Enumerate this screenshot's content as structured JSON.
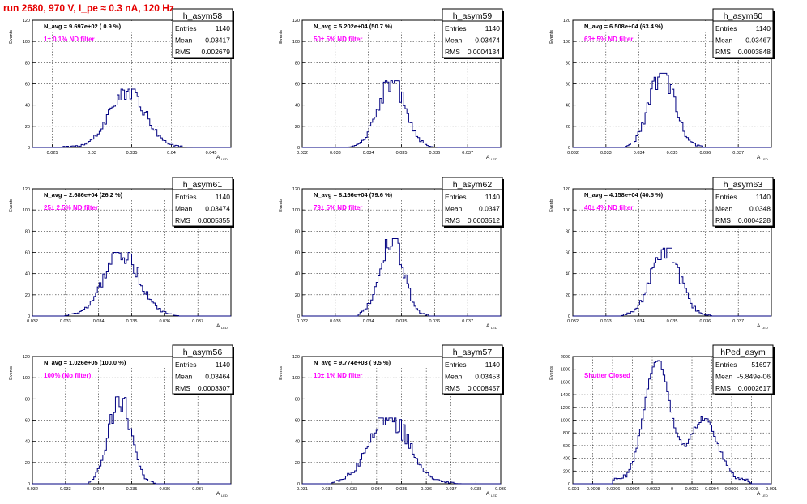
{
  "title": "run 2680,   970 V, I_pe ≈ 0.3 nA, 120 Hz",
  "colors": {
    "title": "#e60000",
    "annotation": "#ff00ff",
    "histogram": "#000080",
    "grid": "#000000"
  },
  "y_axis_label": "Events",
  "x_axis_label": "A",
  "x_axis_label_sub": "LED",
  "stats_labels": {
    "entries": "Entries",
    "mean": "Mean",
    "rms": "RMS"
  },
  "chart_data": [
    {
      "type": "histogram",
      "name": "h_asym58",
      "entries": "1140",
      "mean": "0.03417",
      "rms": "0.002679",
      "navg_text": "N_avg = 9.697e+02 ( 0.9 %)",
      "annotation": "1± 0.1% ND filter",
      "xlim": [
        0.0225,
        0.0475
      ],
      "ylim": [
        0,
        120
      ],
      "xticks": [
        0.025,
        0.03,
        0.035,
        0.04,
        0.045
      ],
      "xtick_labels": [
        "0.025",
        "0.03",
        "0.035",
        "0.04",
        "0.045"
      ],
      "yticks": [
        0,
        20,
        40,
        60,
        80,
        100,
        120
      ],
      "ytick_labels": [
        "0",
        "20",
        "40",
        "60",
        "80",
        "100",
        "120"
      ],
      "peak_x": 0.0345,
      "peak_y": 55,
      "sigma": 0.0022,
      "span": [
        0.026,
        0.043
      ]
    },
    {
      "type": "histogram",
      "name": "h_asym59",
      "entries": "1140",
      "mean": "0.03474",
      "rms": "0.0004134",
      "navg_text": "N_avg = 5.202e+04 (50.7 %)",
      "annotation": "50± 5% ND filter",
      "xlim": [
        0.032,
        0.038
      ],
      "ylim": [
        0,
        120
      ],
      "xticks": [
        0.032,
        0.033,
        0.034,
        0.035,
        0.036,
        0.037
      ],
      "xtick_labels": [
        "0.032",
        "0.033",
        "0.034",
        "0.035",
        "0.036",
        "0.037"
      ],
      "yticks": [
        0,
        20,
        40,
        60,
        80,
        100,
        120
      ],
      "ytick_labels": [
        "0",
        "20",
        "40",
        "60",
        "80",
        "100",
        "120"
      ],
      "peak_x": 0.0347,
      "peak_y": 63,
      "sigma": 0.00041,
      "span": [
        0.0334,
        0.0361
      ]
    },
    {
      "type": "histogram",
      "name": "h_asym60",
      "entries": "1140",
      "mean": "0.03467",
      "rms": "0.0003848",
      "navg_text": "N_avg = 6.508e+04 (63.4 %)",
      "annotation": "63± 5% ND filter",
      "xlim": [
        0.032,
        0.038
      ],
      "ylim": [
        0,
        120
      ],
      "xticks": [
        0.032,
        0.033,
        0.034,
        0.035,
        0.036,
        0.037
      ],
      "xtick_labels": [
        "0.032",
        "0.033",
        "0.034",
        "0.035",
        "0.036",
        "0.037"
      ],
      "yticks": [
        0,
        20,
        40,
        60,
        80,
        100,
        120
      ],
      "ytick_labels": [
        "0",
        "20",
        "40",
        "60",
        "80",
        "100",
        "120"
      ],
      "peak_x": 0.0347,
      "peak_y": 70,
      "sigma": 0.00038,
      "span": [
        0.0336,
        0.0359
      ]
    },
    {
      "type": "histogram",
      "name": "h_asym61",
      "entries": "1140",
      "mean": "0.03474",
      "rms": "0.0005355",
      "navg_text": "N_avg = 2.686e+04 (26.2 %)",
      "annotation": "25± 2.5% ND filter",
      "xlim": [
        0.032,
        0.038
      ],
      "ylim": [
        0,
        120
      ],
      "xticks": [
        0.032,
        0.033,
        0.034,
        0.035,
        0.036,
        0.037
      ],
      "xtick_labels": [
        "0.032",
        "0.033",
        "0.034",
        "0.035",
        "0.036",
        "0.037"
      ],
      "yticks": [
        0,
        20,
        40,
        60,
        80,
        100,
        120
      ],
      "ytick_labels": [
        "0",
        "20",
        "40",
        "60",
        "80",
        "100",
        "120"
      ],
      "peak_x": 0.0347,
      "peak_y": 60,
      "sigma": 0.00053,
      "span": [
        0.033,
        0.0364
      ]
    },
    {
      "type": "histogram",
      "name": "h_asym62",
      "entries": "1140",
      "mean": "0.0347",
      "rms": "0.0003512",
      "navg_text": "N_avg = 8.166e+04 (79.6 %)",
      "annotation": "79± 5% ND filter",
      "xlim": [
        0.032,
        0.038
      ],
      "ylim": [
        0,
        120
      ],
      "xticks": [
        0.032,
        0.033,
        0.034,
        0.035,
        0.036,
        0.037
      ],
      "xtick_labels": [
        "0.032",
        "0.033",
        "0.034",
        "0.035",
        "0.036",
        "0.037"
      ],
      "yticks": [
        0,
        20,
        40,
        60,
        80,
        100,
        120
      ],
      "ytick_labels": [
        "0",
        "20",
        "40",
        "60",
        "80",
        "100",
        "120"
      ],
      "peak_x": 0.0347,
      "peak_y": 73,
      "sigma": 0.00035,
      "span": [
        0.0337,
        0.0358
      ]
    },
    {
      "type": "histogram",
      "name": "h_asym63",
      "entries": "1140",
      "mean": "0.0348",
      "rms": "0.0004228",
      "navg_text": "N_avg = 4.158e+04 (40.5 %)",
      "annotation": "40± 4% ND filter",
      "xlim": [
        0.032,
        0.038
      ],
      "ylim": [
        0,
        120
      ],
      "xticks": [
        0.032,
        0.033,
        0.034,
        0.035,
        0.036,
        0.037
      ],
      "xtick_labels": [
        "0.032",
        "0.033",
        "0.034",
        "0.035",
        "0.036",
        "0.037"
      ],
      "yticks": [
        0,
        20,
        40,
        60,
        80,
        100,
        120
      ],
      "ytick_labels": [
        "0",
        "20",
        "40",
        "60",
        "80",
        "100",
        "120"
      ],
      "peak_x": 0.0348,
      "peak_y": 64,
      "sigma": 0.00042,
      "span": [
        0.0335,
        0.0362
      ]
    },
    {
      "type": "histogram",
      "name": "h_asym56",
      "entries": "1140",
      "mean": "0.03464",
      "rms": "0.0003307",
      "navg_text": "N_avg = 1.026e+05 (100.0 %)",
      "annotation": "100% (No filter)",
      "xlim": [
        0.032,
        0.038
      ],
      "ylim": [
        0,
        120
      ],
      "xticks": [
        0.032,
        0.033,
        0.034,
        0.035,
        0.036,
        0.037
      ],
      "xtick_labels": [
        "0.032",
        "0.033",
        "0.034",
        "0.035",
        "0.036",
        "0.037"
      ],
      "yticks": [
        0,
        20,
        40,
        60,
        80,
        100,
        120
      ],
      "ytick_labels": [
        "0",
        "20",
        "40",
        "60",
        "80",
        "100",
        "120"
      ],
      "peak_x": 0.03464,
      "peak_y": 82,
      "sigma": 0.00033,
      "span": [
        0.0337,
        0.0357
      ]
    },
    {
      "type": "histogram",
      "name": "h_asym57",
      "entries": "1140",
      "mean": "0.03453",
      "rms": "0.0008457",
      "navg_text": "N_avg = 9.774e+03 ( 9.5 %)",
      "annotation": "10± 1% ND filter",
      "xlim": [
        0.031,
        0.039
      ],
      "ylim": [
        0,
        120
      ],
      "xticks": [
        0.031,
        0.032,
        0.033,
        0.034,
        0.035,
        0.036,
        0.037,
        0.038,
        0.039
      ],
      "xtick_labels": [
        "0.031",
        "0.032",
        "0.033",
        "0.034",
        "0.035",
        "0.036",
        "0.037",
        "0.038",
        "0.039"
      ],
      "yticks": [
        0,
        20,
        40,
        60,
        80,
        100,
        120
      ],
      "ytick_labels": [
        "0",
        "20",
        "40",
        "60",
        "80",
        "100",
        "120"
      ],
      "peak_x": 0.0345,
      "peak_y": 62,
      "sigma": 0.0008,
      "span": [
        0.0322,
        0.0374
      ]
    },
    {
      "type": "histogram",
      "name": "hPed_asym",
      "entries": "51697",
      "mean": "-5.849e-06",
      "rms": "0.0002617",
      "navg_text": "",
      "annotation": "Shutter Closed",
      "xlim": [
        -0.001,
        0.001
      ],
      "ylim": [
        0,
        2000
      ],
      "xticks": [
        -0.001,
        -0.0008,
        -0.0006,
        -0.0004,
        -0.0002,
        0,
        0.0002,
        0.0004,
        0.0006,
        0.0008,
        0.001
      ],
      "xtick_labels": [
        "-0.001",
        "-0.0008",
        "-0.0006",
        "-0.0004",
        "-0.0002",
        "0",
        "0.0002",
        "0.0004",
        "0.0006",
        "0.0008",
        "0.001"
      ],
      "yticks": [
        0,
        200,
        400,
        600,
        800,
        1000,
        1200,
        1400,
        1600,
        1800,
        2000
      ],
      "ytick_labels": [
        "0",
        "200",
        "400",
        "600",
        "800",
        "1000",
        "1200",
        "1400",
        "1600",
        "1800",
        "2000"
      ],
      "bimodal": [
        {
          "x": -0.00015,
          "y": 1900,
          "sigma": 0.00013
        },
        {
          "x": 0.00032,
          "y": 980,
          "sigma": 0.00014
        }
      ],
      "span": [
        -0.0006,
        0.0008
      ]
    }
  ]
}
